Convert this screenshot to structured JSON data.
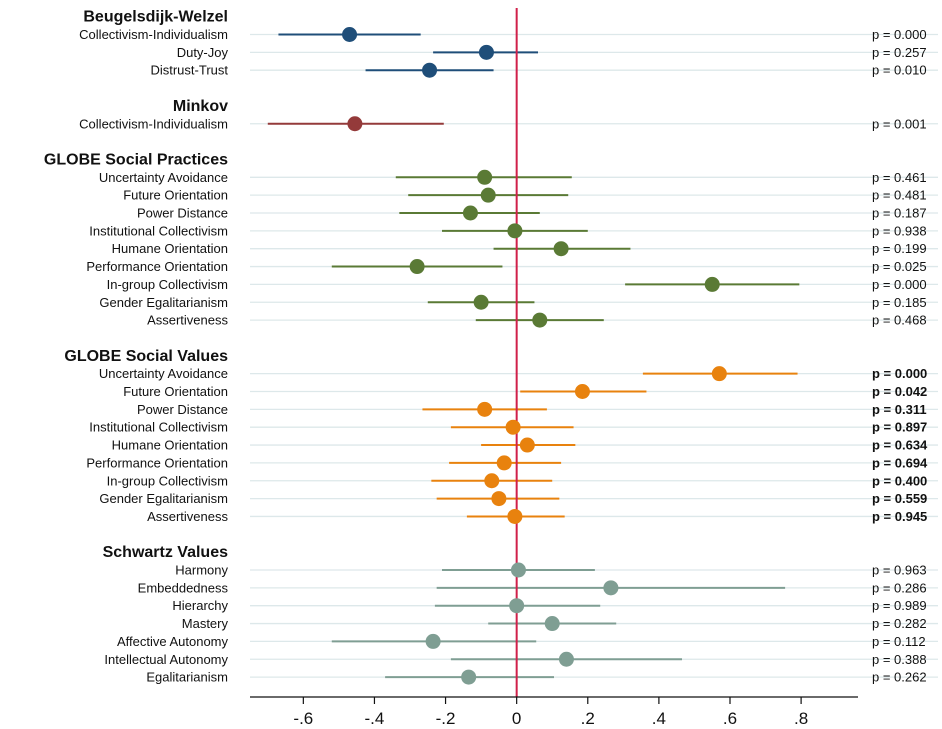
{
  "chart_data": {
    "type": "scatter",
    "subtype": "coefficient-plot",
    "x_ticks": [
      -0.6,
      -0.4,
      -0.2,
      0,
      0.2,
      0.4,
      0.6,
      0.8
    ],
    "x_tick_labels": [
      "-.6",
      "-.4",
      "-.2",
      "0",
      ".2",
      ".4",
      ".6",
      ".8"
    ],
    "xlim": [
      -0.75,
      0.96
    ],
    "reference_line_x": 0,
    "grid": "horizontal",
    "colors": {
      "beugelsdijk": "#1f4e79",
      "minkov": "#943a3a",
      "globe_practices": "#5a7a35",
      "globe_values": "#e8820e",
      "schwartz": "#7f9e93",
      "reference_line": "#d0204a",
      "grid": "#dde8ea"
    },
    "groups": [
      {
        "title": "Beugelsdijk-Welzel",
        "color_key": "beugelsdijk",
        "p_bold": false,
        "items": [
          {
            "label": "Collectivism-Individualism",
            "estimate": -0.47,
            "ci": [
              -0.67,
              -0.27
            ],
            "p": "p = 0.000"
          },
          {
            "label": "Duty-Joy",
            "estimate": -0.085,
            "ci": [
              -0.235,
              0.06
            ],
            "p": "p = 0.257"
          },
          {
            "label": "Distrust-Trust",
            "estimate": -0.245,
            "ci": [
              -0.425,
              -0.065
            ],
            "p": "p = 0.010"
          }
        ]
      },
      {
        "title": "Minkov",
        "color_key": "minkov",
        "p_bold": false,
        "items": [
          {
            "label": "Collectivism-Individualism",
            "estimate": -0.455,
            "ci": [
              -0.7,
              -0.205
            ],
            "p": "p = 0.001"
          }
        ]
      },
      {
        "title": "GLOBE Social Practices",
        "color_key": "globe_practices",
        "p_bold": false,
        "items": [
          {
            "label": "Uncertainty Avoidance",
            "estimate": -0.09,
            "ci": [
              -0.34,
              0.155
            ],
            "p": "p = 0.461"
          },
          {
            "label": "Future Orientation",
            "estimate": -0.08,
            "ci": [
              -0.305,
              0.145
            ],
            "p": "p = 0.481"
          },
          {
            "label": "Power Distance",
            "estimate": -0.13,
            "ci": [
              -0.33,
              0.065
            ],
            "p": "p = 0.187"
          },
          {
            "label": "Institutional Collectivism",
            "estimate": -0.005,
            "ci": [
              -0.21,
              0.2
            ],
            "p": "p = 0.938"
          },
          {
            "label": "Humane Orientation",
            "estimate": 0.125,
            "ci": [
              -0.065,
              0.32
            ],
            "p": "p = 0.199"
          },
          {
            "label": "Performance Orientation",
            "estimate": -0.28,
            "ci": [
              -0.52,
              -0.04
            ],
            "p": "p = 0.025"
          },
          {
            "label": "In-group Collectivism",
            "estimate": 0.55,
            "ci": [
              0.305,
              0.795
            ],
            "p": "p = 0.000"
          },
          {
            "label": "Gender Egalitarianism",
            "estimate": -0.1,
            "ci": [
              -0.25,
              0.05
            ],
            "p": "p = 0.185"
          },
          {
            "label": "Assertiveness",
            "estimate": 0.065,
            "ci": [
              -0.115,
              0.245
            ],
            "p": "p = 0.468"
          }
        ]
      },
      {
        "title": "GLOBE Social Values",
        "color_key": "globe_values",
        "p_bold": true,
        "items": [
          {
            "label": "Uncertainty Avoidance",
            "estimate": 0.57,
            "ci": [
              0.355,
              0.79
            ],
            "p": "p = 0.000"
          },
          {
            "label": "Future Orientation",
            "estimate": 0.185,
            "ci": [
              0.01,
              0.365
            ],
            "p": "p = 0.042"
          },
          {
            "label": "Power Distance",
            "estimate": -0.09,
            "ci": [
              -0.265,
              0.085
            ],
            "p": "p = 0.311"
          },
          {
            "label": "Institutional Collectivism",
            "estimate": -0.01,
            "ci": [
              -0.185,
              0.16
            ],
            "p": "p = 0.897"
          },
          {
            "label": "Humane Orientation",
            "estimate": 0.03,
            "ci": [
              -0.1,
              0.165
            ],
            "p": "p = 0.634"
          },
          {
            "label": "Performance Orientation",
            "estimate": -0.035,
            "ci": [
              -0.19,
              0.125
            ],
            "p": "p = 0.694"
          },
          {
            "label": "In-group Collectivism",
            "estimate": -0.07,
            "ci": [
              -0.24,
              0.1
            ],
            "p": "p = 0.400"
          },
          {
            "label": "Gender Egalitarianism",
            "estimate": -0.05,
            "ci": [
              -0.225,
              0.12
            ],
            "p": "p = 0.559"
          },
          {
            "label": "Assertiveness",
            "estimate": -0.005,
            "ci": [
              -0.14,
              0.135
            ],
            "p": "p = 0.945"
          }
        ]
      },
      {
        "title": "Schwartz Values",
        "color_key": "schwartz",
        "p_bold": false,
        "items": [
          {
            "label": "Harmony",
            "estimate": 0.005,
            "ci": [
              -0.21,
              0.22
            ],
            "p": "p = 0.963"
          },
          {
            "label": "Embeddedness",
            "estimate": 0.265,
            "ci": [
              -0.225,
              0.755
            ],
            "p": "p = 0.286"
          },
          {
            "label": "Hierarchy",
            "estimate": 0.0,
            "ci": [
              -0.23,
              0.235
            ],
            "p": "p = 0.989"
          },
          {
            "label": "Mastery",
            "estimate": 0.1,
            "ci": [
              -0.08,
              0.28
            ],
            "p": "p = 0.282"
          },
          {
            "label": "Affective Autonomy",
            "estimate": -0.235,
            "ci": [
              -0.52,
              0.055
            ],
            "p": "p = 0.112"
          },
          {
            "label": "Intellectual Autonomy",
            "estimate": 0.14,
            "ci": [
              -0.185,
              0.465
            ],
            "p": "p = 0.388"
          },
          {
            "label": "Egalitarianism",
            "estimate": -0.135,
            "ci": [
              -0.37,
              0.105
            ],
            "p": "p = 0.262"
          }
        ]
      }
    ]
  }
}
